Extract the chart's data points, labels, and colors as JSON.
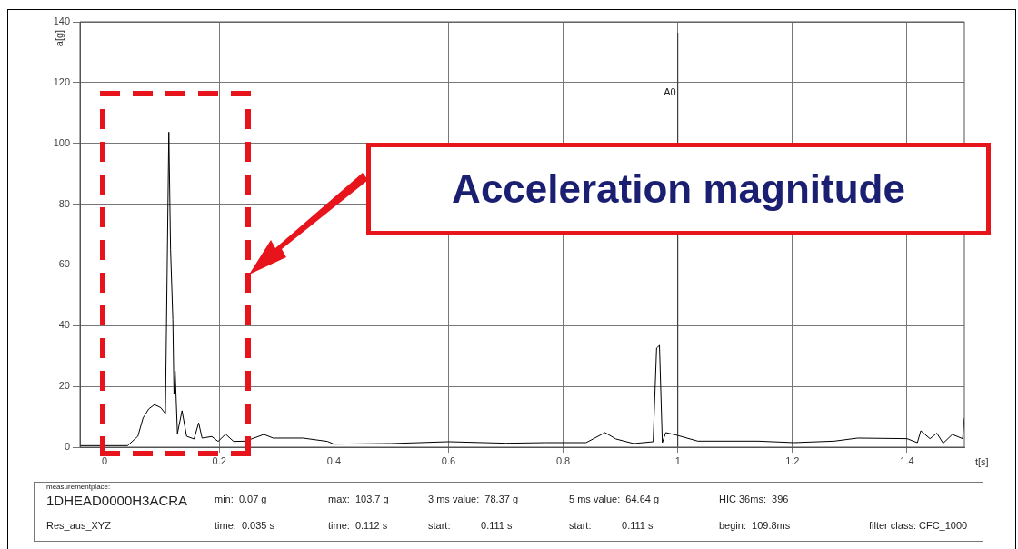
{
  "chart_data": {
    "type": "line",
    "xlabel": "t[s]",
    "ylabel": "a[g]",
    "xlim": [
      -0.043,
      1.5
    ],
    "ylim": [
      0,
      140
    ],
    "xticks": [
      0,
      0.2,
      0.4,
      0.6,
      0.8,
      1,
      1.2,
      1.4
    ],
    "yticks": [
      0,
      20,
      40,
      60,
      80,
      100,
      120,
      140
    ],
    "grid": true,
    "legend": false,
    "marker": "none",
    "line_style": "solid",
    "x": [
      -0.043,
      0.04,
      0.058,
      0.067,
      0.077,
      0.087,
      0.098,
      0.106,
      0.112,
      0.115,
      0.119,
      0.121,
      0.123,
      0.127,
      0.135,
      0.143,
      0.156,
      0.164,
      0.17,
      0.187,
      0.198,
      0.211,
      0.225,
      0.246,
      0.278,
      0.294,
      0.346,
      0.389,
      0.4,
      0.5,
      0.6,
      0.7,
      0.77,
      0.84,
      0.873,
      0.892,
      0.923,
      0.957,
      0.963,
      0.968,
      0.973,
      0.979,
      0.997,
      1.035,
      1.14,
      1.203,
      1.273,
      1.314,
      1.4,
      1.418,
      1.424,
      1.44,
      1.452,
      1.463,
      1.479,
      1.497,
      1.5
    ],
    "series": [
      {
        "color": "#000000",
        "values": [
          0.5,
          0.5,
          3.6,
          9.6,
          12.6,
          14,
          13,
          11,
          103.7,
          65,
          42,
          17.6,
          25,
          4.5,
          12,
          3.6,
          2.7,
          8,
          3,
          3.5,
          1.9,
          4.3,
          1.9,
          2,
          4.2,
          3,
          3,
          1.9,
          1,
          1.2,
          1.8,
          1.3,
          1.5,
          1.5,
          4.8,
          2.7,
          1.2,
          1.8,
          32.6,
          33.5,
          1.5,
          4.8,
          4,
          2,
          2,
          1.5,
          2,
          3,
          2.8,
          1.5,
          5.4,
          2.8,
          4.6,
          1.3,
          4.2,
          2.8,
          9.6
        ]
      }
    ],
    "ref_lines": [
      {
        "axis": "x",
        "value": 1,
        "label": "A0",
        "color": "#333333"
      }
    ],
    "annotations": [
      "Acceleration magnitude",
      "measurementplace:",
      "1DHEAD0000H3ACRA",
      "min:  0.07 g",
      "max:  103.7 g",
      "3 ms value:  78.37 g",
      "5 ms value:  64.64 g",
      "HIC 36ms:  396",
      "Res_aus_XYZ",
      "time:  0.035 s",
      "time:  0.112 s",
      "start:           0.111 s",
      "start:           0.111 s",
      "begin:  109.8ms",
      "filter class: CFC_1000"
    ]
  }
}
